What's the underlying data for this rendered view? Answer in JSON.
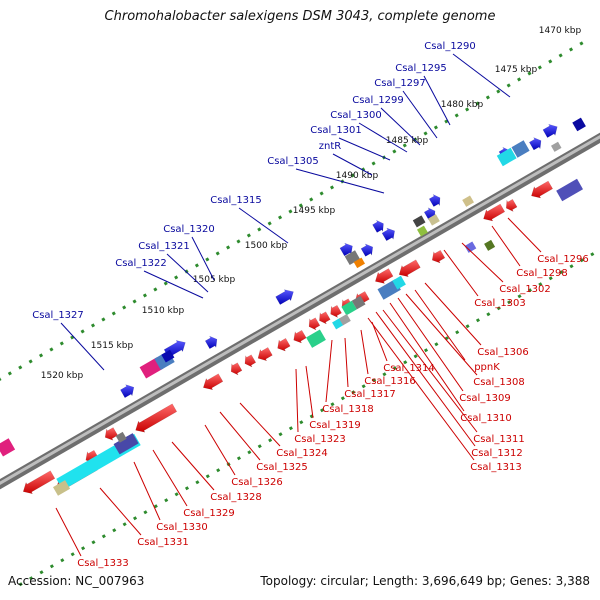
{
  "title": "Chromohalobacter salexigens DSM 3043, complete genome",
  "footer": {
    "accession": "Accession: NC_007963",
    "topology": "Topology: circular; Length: 3,696,649 bp; Genes: 3,388"
  },
  "colors": {
    "background": "#ffffff",
    "backbone": "#8c8c8c",
    "scale_dots": "#2e8b2e",
    "forward_label": "#0a0a9e",
    "reverse_label": "#cc0000",
    "forward_gene": "#1a1ad6",
    "reverse_gene": "#e61212"
  },
  "scale_ticks": [
    "1470 kbp",
    "1475 kbp",
    "1480 kbp",
    "1485 kbp",
    "1490 kbp",
    "1495 kbp",
    "1500 kbp",
    "1505 kbp",
    "1510 kbp",
    "1515 kbp",
    "1520 kbp"
  ],
  "forward_labels": [
    "Csal_1290",
    "Csal_1295",
    "Csal_1297",
    "Csal_1299",
    "Csal_1300",
    "Csal_1301",
    "zntR",
    "Csal_1305",
    "Csal_1315",
    "Csal_1320",
    "Csal_1321",
    "Csal_1322",
    "Csal_1327"
  ],
  "reverse_labels": [
    "Csal_1296",
    "Csal_1298",
    "Csal_1302",
    "Csal_1303",
    "Csal_1306",
    "ppnK",
    "Csal_1308",
    "Csal_1309",
    "Csal_1310",
    "Csal_1311",
    "Csal_1312",
    "Csal_1313",
    "Csal_1314",
    "Csal_1316",
    "Csal_1317",
    "Csal_1318",
    "Csal_1319",
    "Csal_1323",
    "Csal_1324",
    "Csal_1325",
    "Csal_1326",
    "Csal_1328",
    "Csal_1329",
    "Csal_1330",
    "Csal_1331",
    "Csal_1333"
  ]
}
